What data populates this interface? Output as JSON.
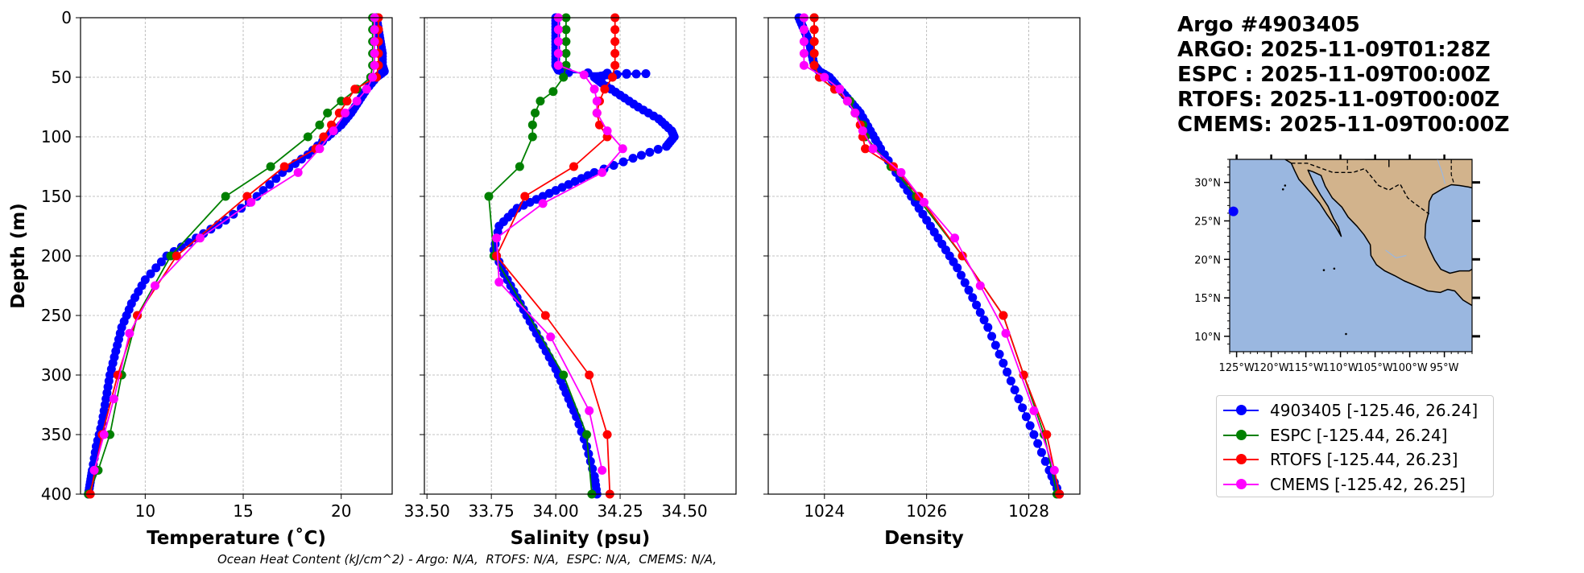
{
  "title_lines": [
    "Argo #4903405",
    "ARGO: 2025-11-09T01:28Z",
    "ESPC : 2025-11-09T00:00Z",
    "RTOFS: 2025-11-09T00:00Z",
    "CMEMS: 2025-11-09T00:00Z"
  ],
  "footer": "Ocean Heat Content (kJ/cm^2) - Argo: N/A,  RTOFS: N/A,  ESPC: N/A,  CMEMS: N/A,",
  "legend": [
    {
      "label": "4903405 [-125.46, 26.24]",
      "color": "#0000ff"
    },
    {
      "label": "ESPC [-125.44, 26.24]",
      "color": "#008000"
    },
    {
      "label": "RTOFS [-125.44, 26.23]",
      "color": "#ff0000"
    },
    {
      "label": "CMEMS [-125.42, 26.25]",
      "color": "#ff00ff"
    }
  ],
  "colors": {
    "argo": "#0000ff",
    "espc": "#008000",
    "rtofs": "#ff0000",
    "cmems": "#ff00ff",
    "ocean": "#9ab7e0",
    "land": "#d2b38c"
  },
  "chart_data": [
    {
      "type": "line",
      "title": "",
      "xlabel": "Temperature (˚C)",
      "ylabel": "Depth (m)",
      "xlim": [
        6.7,
        22.6
      ],
      "ylim": [
        400,
        0
      ],
      "xticks": [
        10,
        15,
        20
      ],
      "yticks": [
        0,
        50,
        100,
        150,
        200,
        250,
        300,
        350,
        400
      ],
      "grid": true,
      "series": [
        {
          "name": "4903405",
          "color": "#0000ff",
          "style": "dense",
          "x": [
            21.8,
            21.9,
            22.0,
            22.1,
            22.1,
            22.2,
            21.8,
            21.3,
            20.9,
            20.5,
            20.0,
            19.3,
            18.3,
            17.0,
            15.7,
            14.1,
            12.6,
            11.1,
            10.0,
            9.3,
            8.8,
            8.5,
            8.2,
            8.0,
            7.8,
            7.5,
            7.3,
            7.2,
            7.1
          ],
          "y": [
            0,
            10,
            20,
            30,
            40,
            45,
            50,
            60,
            70,
            80,
            90,
            100,
            115,
            130,
            150,
            170,
            185,
            200,
            220,
            240,
            260,
            280,
            300,
            320,
            340,
            360,
            380,
            390,
            400
          ]
        },
        {
          "name": "ESPC",
          "color": "#008000",
          "style": "marker",
          "x": [
            21.6,
            21.6,
            21.6,
            21.6,
            21.6,
            21.5,
            20.8,
            20.0,
            19.3,
            18.9,
            18.3,
            16.4,
            14.1,
            11.3,
            9.6,
            8.8,
            8.2,
            7.6,
            7.1
          ],
          "y": [
            0,
            10,
            20,
            30,
            40,
            50,
            60,
            70,
            80,
            90,
            100,
            125,
            150,
            200,
            250,
            300,
            350,
            380,
            400
          ]
        },
        {
          "name": "RTOFS",
          "color": "#ff0000",
          "style": "marker",
          "x": [
            21.9,
            21.9,
            21.9,
            21.9,
            21.9,
            21.8,
            20.7,
            20.3,
            19.9,
            19.5,
            19.1,
            18.7,
            17.1,
            15.2,
            11.6,
            9.6,
            8.6,
            7.8,
            7.2
          ],
          "y": [
            0,
            10,
            20,
            30,
            40,
            50,
            60,
            70,
            80,
            90,
            100,
            110,
            125,
            150,
            200,
            250,
            300,
            350,
            400
          ]
        },
        {
          "name": "CMEMS",
          "color": "#ff00ff",
          "style": "marker",
          "x": [
            21.7,
            21.7,
            21.7,
            21.7,
            21.7,
            21.6,
            21.3,
            20.8,
            20.2,
            19.6,
            18.9,
            17.8,
            15.4,
            12.8,
            10.5,
            9.2,
            8.4,
            7.9,
            7.4
          ],
          "y": [
            0,
            10,
            20,
            30,
            40,
            50,
            60,
            70,
            80,
            95,
            110,
            130,
            155,
            185,
            225,
            265,
            320,
            350,
            380
          ]
        }
      ]
    },
    {
      "type": "line",
      "title": "",
      "xlabel": "Salinity (psu)",
      "ylabel": "",
      "xlim": [
        33.49,
        34.7
      ],
      "ylim": [
        400,
        0
      ],
      "xticks": [
        33.5,
        33.75,
        34.0,
        34.25,
        34.5
      ],
      "xticklabels": [
        "33.50",
        "33.75",
        "34.00",
        "34.25",
        "34.50"
      ],
      "grid": true,
      "series": [
        {
          "name": "4903405",
          "color": "#0000ff",
          "style": "dense",
          "x": [
            34.0,
            34.0,
            34.0,
            34.0,
            34.0,
            34.01,
            34.05,
            34.35,
            34.2,
            34.15,
            34.18,
            34.25,
            34.32,
            34.4,
            34.45,
            34.46,
            34.43,
            34.3,
            34.15,
            34.05,
            33.95,
            33.85,
            33.78,
            33.76,
            33.8,
            33.85,
            33.9,
            33.95,
            34.0,
            34.04,
            34.08,
            34.12,
            34.15,
            34.16
          ],
          "y": [
            0,
            10,
            20,
            30,
            40,
            44,
            46,
            47,
            48,
            50,
            55,
            65,
            75,
            85,
            95,
            100,
            108,
            118,
            130,
            140,
            150,
            160,
            175,
            195,
            215,
            235,
            255,
            275,
            295,
            315,
            335,
            360,
            385,
            400
          ]
        },
        {
          "name": "ESPC",
          "color": "#008000",
          "style": "marker",
          "x": [
            34.04,
            34.04,
            34.04,
            34.04,
            34.04,
            34.03,
            33.99,
            33.94,
            33.92,
            33.91,
            33.91,
            33.86,
            33.74,
            33.76,
            34.03,
            34.12,
            34.14
          ],
          "y": [
            0,
            10,
            20,
            30,
            40,
            50,
            62,
            70,
            80,
            90,
            100,
            125,
            150,
            200,
            300,
            350,
            400
          ]
        },
        {
          "name": "RTOFS",
          "color": "#ff0000",
          "style": "marker",
          "x": [
            34.23,
            34.23,
            34.23,
            34.23,
            34.23,
            34.22,
            34.19,
            34.17,
            34.16,
            34.17,
            34.2,
            34.07,
            33.88,
            33.77,
            33.96,
            34.13,
            34.2,
            34.21
          ],
          "y": [
            0,
            10,
            20,
            30,
            40,
            50,
            60,
            70,
            80,
            90,
            100,
            125,
            150,
            200,
            250,
            300,
            350,
            400
          ]
        },
        {
          "name": "CMEMS",
          "color": "#ff00ff",
          "style": "marker",
          "x": [
            34.01,
            34.01,
            34.01,
            34.01,
            34.01,
            34.11,
            34.15,
            34.16,
            34.16,
            34.2,
            34.26,
            34.18,
            33.95,
            33.77,
            33.78,
            33.98,
            34.13,
            34.18
          ],
          "y": [
            0,
            10,
            20,
            30,
            40,
            48,
            60,
            70,
            80,
            95,
            110,
            130,
            156,
            185,
            222,
            268,
            330,
            380
          ]
        }
      ]
    },
    {
      "type": "line",
      "title": "",
      "xlabel": "Density",
      "ylabel": "",
      "xlim": [
        1022.9,
        1029.0
      ],
      "ylim": [
        400,
        0
      ],
      "xticks": [
        1024,
        1026,
        1028
      ],
      "grid": true,
      "series": [
        {
          "name": "4903405",
          "color": "#0000ff",
          "style": "dense",
          "x": [
            1023.5,
            1023.6,
            1023.7,
            1023.75,
            1023.8,
            1023.9,
            1024.1,
            1024.3,
            1024.5,
            1024.7,
            1024.9,
            1025.1,
            1025.4,
            1025.7,
            1026.0,
            1026.3,
            1026.6,
            1026.9,
            1027.2,
            1027.5,
            1027.8,
            1028.1,
            1028.4,
            1028.6
          ],
          "y": [
            0,
            10,
            20,
            30,
            40,
            45,
            50,
            60,
            70,
            80,
            95,
            110,
            130,
            150,
            170,
            190,
            210,
            235,
            260,
            290,
            320,
            350,
            380,
            400
          ]
        },
        {
          "name": "ESPC",
          "color": "#008000",
          "style": "marker",
          "x": [
            1023.8,
            1023.8,
            1023.8,
            1023.8,
            1023.8,
            1023.9,
            1024.2,
            1024.5,
            1024.6,
            1024.75,
            1024.8,
            1025.3,
            1025.8,
            1026.7,
            1027.5,
            1027.9,
            1028.3,
            1028.55
          ],
          "y": [
            0,
            10,
            20,
            30,
            40,
            50,
            60,
            70,
            80,
            90,
            100,
            125,
            150,
            200,
            250,
            300,
            350,
            400
          ]
        },
        {
          "name": "RTOFS",
          "color": "#ff0000",
          "style": "marker",
          "x": [
            1023.8,
            1023.8,
            1023.8,
            1023.8,
            1023.8,
            1023.9,
            1024.2,
            1024.45,
            1024.6,
            1024.7,
            1024.75,
            1024.8,
            1025.35,
            1025.85,
            1026.7,
            1027.5,
            1027.9,
            1028.35,
            1028.6
          ],
          "y": [
            0,
            10,
            20,
            30,
            40,
            50,
            60,
            70,
            80,
            90,
            100,
            110,
            125,
            150,
            200,
            250,
            300,
            350,
            400
          ]
        },
        {
          "name": "CMEMS",
          "color": "#ff00ff",
          "style": "marker",
          "x": [
            1023.6,
            1023.6,
            1023.6,
            1023.6,
            1023.6,
            1024.0,
            1024.3,
            1024.45,
            1024.6,
            1024.75,
            1024.95,
            1025.5,
            1025.95,
            1026.55,
            1027.05,
            1027.55,
            1028.1,
            1028.5
          ],
          "y": [
            0,
            10,
            20,
            30,
            40,
            50,
            60,
            70,
            80,
            95,
            110,
            130,
            155,
            185,
            225,
            265,
            330,
            380
          ]
        }
      ]
    }
  ],
  "map": {
    "lon_labels": [
      "125°W",
      "120°W",
      "115°W",
      "110°W",
      "105°W",
      "100°W",
      "95°W"
    ],
    "lat_labels": [
      "30°N",
      "25°N",
      "20°N",
      "15°N",
      "10°N"
    ],
    "lon_range": [
      -126,
      -91
    ],
    "lat_range": [
      8,
      33
    ],
    "float_position": [
      -125.46,
      26.24
    ]
  }
}
